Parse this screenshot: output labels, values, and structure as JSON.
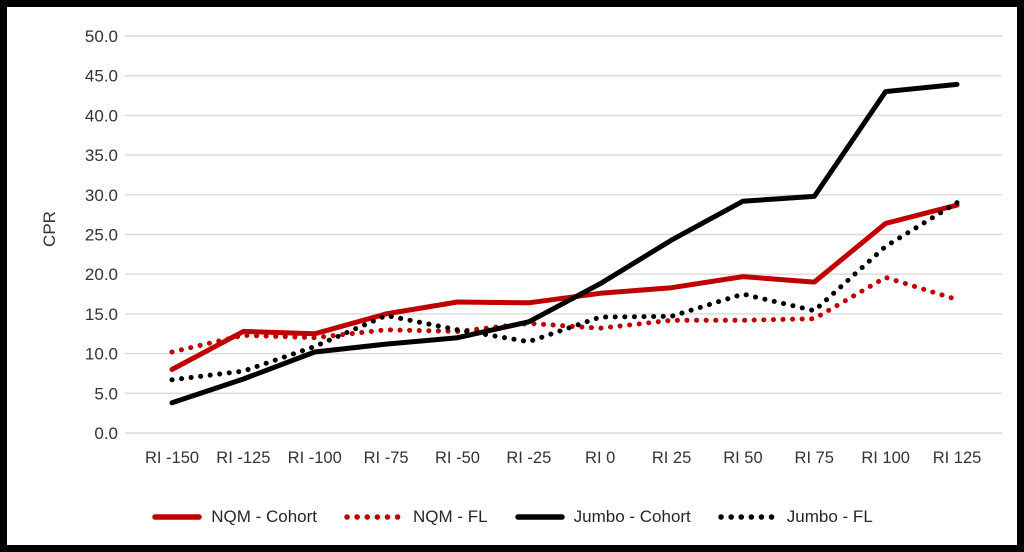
{
  "frame": {
    "background_color": "#000000",
    "card_background_color": "#ffffff"
  },
  "chart_data": {
    "type": "line",
    "title": "",
    "xlabel": "",
    "ylabel": "CPR",
    "ylim": [
      0,
      50
    ],
    "yticks": [
      0,
      5,
      10,
      15,
      20,
      25,
      30,
      35,
      40,
      45,
      50
    ],
    "ytick_labels": [
      "0.0",
      "5.0",
      "10.0",
      "15.0",
      "20.0",
      "25.0",
      "30.0",
      "35.0",
      "40.0",
      "45.0",
      "50.0"
    ],
    "categories": [
      "RI -150",
      "RI -125",
      "RI -100",
      "RI -75",
      "RI -50",
      "RI -25",
      "RI 0",
      "RI 25",
      "RI 50",
      "RI 75",
      "RI 100",
      "RI 125"
    ],
    "series": [
      {
        "name": "NQM - Cohort",
        "color": "#C00000",
        "style": "solid",
        "values": [
          8.0,
          12.8,
          12.5,
          15.0,
          16.5,
          16.4,
          17.6,
          18.3,
          19.7,
          19.0,
          26.4,
          28.7
        ]
      },
      {
        "name": "NQM - FL",
        "color": "#C00000",
        "style": "dotted",
        "values": [
          10.2,
          12.3,
          12.0,
          13.0,
          12.8,
          13.8,
          13.2,
          14.2,
          14.2,
          14.4,
          19.6,
          16.8
        ]
      },
      {
        "name": "Jumbo - Cohort",
        "color": "#000000",
        "style": "solid",
        "values": [
          3.8,
          6.8,
          10.2,
          11.2,
          12.0,
          14.0,
          18.8,
          24.3,
          29.2,
          29.8,
          43.0,
          43.9
        ]
      },
      {
        "name": "Jumbo - FL",
        "color": "#000000",
        "style": "dotted",
        "values": [
          6.7,
          7.8,
          10.9,
          14.8,
          13.0,
          11.5,
          14.6,
          14.7,
          17.5,
          15.4,
          23.5,
          29.0
        ]
      }
    ],
    "grid": {
      "horizontal": true,
      "color": "#D9D9D9"
    },
    "legend_position": "bottom",
    "axis_text_color": "#333333",
    "tick_font_size": 16.5,
    "ylabel_font_size": 17
  }
}
